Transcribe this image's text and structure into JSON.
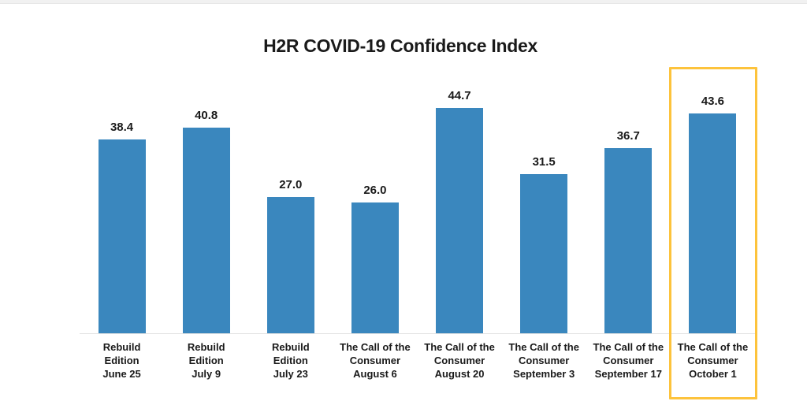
{
  "chart_data": {
    "type": "bar",
    "title": "H2R COVID-19 Confidence Index",
    "categories": [
      "Rebuild Edition June 25",
      "Rebuild Edition July 9",
      "Rebuild Edition July 23",
      "The Call of the Consumer August 6",
      "The Call of the Consumer August 20",
      "The Call of the Consumer September 3",
      "The Call of the Consumer September 17",
      "The Call of the Consumer October 1"
    ],
    "category_lines": [
      [
        "Rebuild",
        "Edition",
        "June 25"
      ],
      [
        "Rebuild",
        "Edition",
        "July 9"
      ],
      [
        "Rebuild",
        "Edition",
        "July 23"
      ],
      [
        "The Call of the",
        "Consumer",
        "August 6"
      ],
      [
        "The Call of the",
        "Consumer",
        "August 20"
      ],
      [
        "The Call of the",
        "Consumer",
        "September 3"
      ],
      [
        "The Call of the",
        "Consumer",
        "September 17"
      ],
      [
        "The Call of the",
        "Consumer",
        "October 1"
      ]
    ],
    "values": [
      38.4,
      40.8,
      27.0,
      26.0,
      44.7,
      31.5,
      36.7,
      43.6
    ],
    "value_labels": [
      "38.4",
      "40.8",
      "27.0",
      "26.0",
      "44.7",
      "31.5",
      "36.7",
      "43.6"
    ],
    "highlighted_index": 7,
    "xlabel": "",
    "ylabel": "",
    "ylim": [
      0,
      50
    ],
    "grid": false,
    "legend": false
  },
  "colors": {
    "bar": "#3A87BE",
    "highlight_box": "#FDC33C",
    "axis_line": "#E2E2E2",
    "text": "#1A1A1A",
    "top_strip": "#F1F1F1"
  }
}
